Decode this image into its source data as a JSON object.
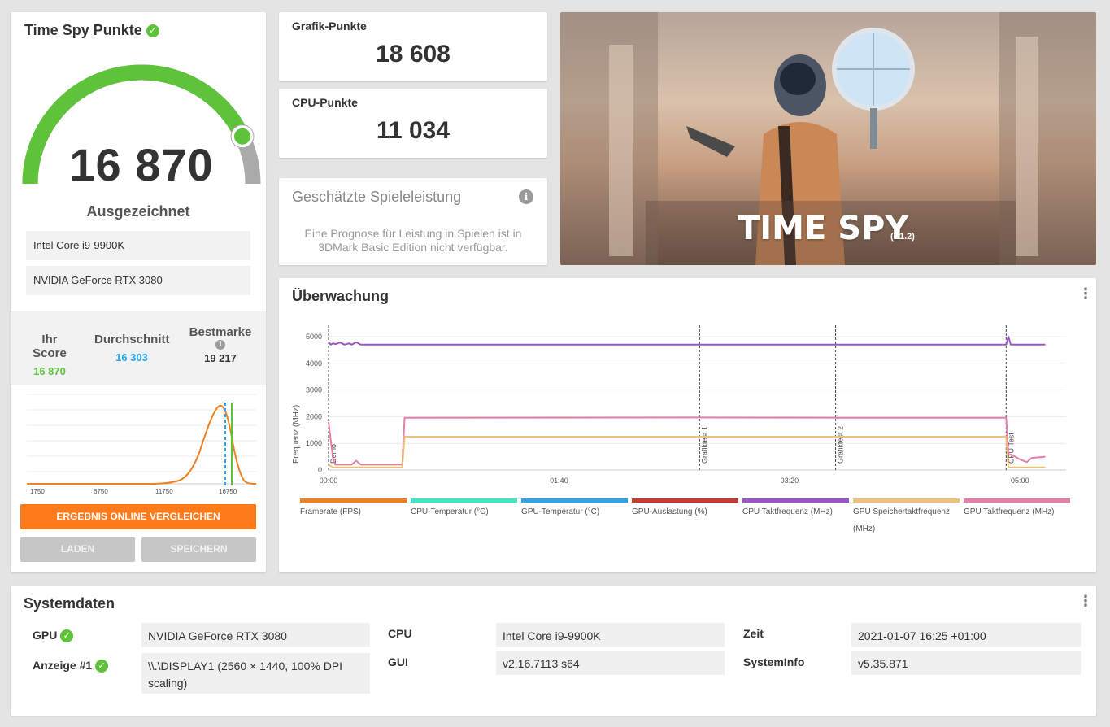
{
  "score_panel": {
    "title": "Time Spy Punkte",
    "score": "16 870",
    "score_fraction": 0.86,
    "rating": "Ausgezeichnet",
    "cpu": "Intel Core i9-9900K",
    "gpu": "NVIDIA GeForce RTX 3080",
    "stats": {
      "your_score_label": "Ihr Score",
      "your_score": "16 870",
      "average_label": "Durchschnitt",
      "average": "16 303",
      "best_label": "Bestmarke",
      "best": "19 217"
    },
    "distribution_chart": {
      "x_ticks": [
        "1750",
        "6750",
        "11750",
        "16750"
      ],
      "your_score_value": 16870,
      "average_value": 16303
    },
    "buttons": {
      "compare": "ERGEBNIS ONLINE VERGLEICHEN",
      "load": "LADEN",
      "save": "SPEICHERN"
    }
  },
  "graphics_score": {
    "label": "Grafik-Punkte",
    "value": "18 608"
  },
  "cpu_score": {
    "label": "CPU-Punkte",
    "value": "11 034"
  },
  "game_estimate": {
    "title": "Geschätzte Spieleleistung",
    "text": "Eine Prognose für Leistung in Spielen ist in 3DMark Basic Edition nicht verfügbar."
  },
  "banner": {
    "title": "TIME SPY",
    "version": "(V1.2)"
  },
  "monitoring": {
    "title": "Überwachung",
    "chart_data": {
      "type": "line",
      "ylabel": "Frequenz (MHz)",
      "y_ticks": [
        "5000",
        "4000",
        "3000",
        "2000",
        "1000",
        "0"
      ],
      "ylim": [
        0,
        5000
      ],
      "x_ticks": [
        "00:00",
        "01:40",
        "03:20",
        "05:00"
      ],
      "xlim_seconds": [
        0,
        320
      ],
      "markers": [
        {
          "t": 0,
          "label": "Demo"
        },
        {
          "t": 161,
          "label": "Grafiktest 1"
        },
        {
          "t": 220,
          "label": "Grafiktest 2"
        },
        {
          "t": 294,
          "label": "CPU Test"
        }
      ],
      "series": [
        {
          "name": "CPU Taktfrequenz (MHz)",
          "color": "#9b55c9",
          "points": [
            [
              0,
              4800
            ],
            [
              1,
              4700
            ],
            [
              2,
              4750
            ],
            [
              3,
              4720
            ],
            [
              5,
              4780
            ],
            [
              7,
              4700
            ],
            [
              9,
              4750
            ],
            [
              10,
              4700
            ],
            [
              12,
              4790
            ],
            [
              14,
              4700
            ],
            [
              294,
              4700
            ],
            [
              295,
              5000
            ],
            [
              296,
              4700
            ],
            [
              311,
              4700
            ]
          ]
        },
        {
          "name": "GPU Taktfrequenz (MHz)",
          "color": "#e67fa8",
          "points": [
            [
              0,
              1800
            ],
            [
              2,
              400
            ],
            [
              3,
              200
            ],
            [
              10,
              200
            ],
            [
              12,
              350
            ],
            [
              14,
              200
            ],
            [
              32,
              200
            ],
            [
              33,
              1960
            ],
            [
              161,
              1970
            ],
            [
              220,
              1960
            ],
            [
              294,
              1960
            ],
            [
              295,
              600
            ],
            [
              297,
              550
            ],
            [
              300,
              400
            ],
            [
              303,
              300
            ],
            [
              305,
              450
            ],
            [
              311,
              500
            ]
          ]
        },
        {
          "name": "GPU Speichertaktfrequenz (MHz)",
          "color": "#ecc27a",
          "points": [
            [
              0,
              200
            ],
            [
              2,
              100
            ],
            [
              32,
              100
            ],
            [
              33,
              1250
            ],
            [
              294,
              1250
            ],
            [
              295,
              100
            ],
            [
              311,
              100
            ]
          ]
        }
      ],
      "legend": [
        {
          "name": "Framerate (FPS)",
          "color": "#f07f1e"
        },
        {
          "name": "CPU-Temperatur (°C)",
          "color": "#3ee8c0"
        },
        {
          "name": "GPU-Temperatur (°C)",
          "color": "#2ca5ea"
        },
        {
          "name": "GPU-Auslastung (%)",
          "color": "#c63a36"
        },
        {
          "name": "CPU Taktfrequenz (MHz)",
          "color": "#9b55c9"
        },
        {
          "name": "GPU Speichertaktfrequenz (MHz)",
          "color": "#ecc27a"
        },
        {
          "name": "GPU Taktfrequenz (MHz)",
          "color": "#e67fa8"
        }
      ]
    }
  },
  "system": {
    "title": "Systemdaten",
    "gpu_label": "GPU",
    "gpu": "NVIDIA GeForce RTX 3080",
    "display_label": "Anzeige #1",
    "display": "\\\\.\\DISPLAY1 (2560 × 1440, 100% DPI scaling)",
    "cpu_label": "CPU",
    "cpu": "Intel Core i9-9900K",
    "gui_label": "GUI",
    "gui": "v2.16.7113 s64",
    "time_label": "Zeit",
    "time": "2021-01-07 16:25 +01:00",
    "sysinfo_label": "SystemInfo",
    "sysinfo": "v5.35.871"
  },
  "colors": {
    "green": "#5ec33b",
    "blue": "#2ca5ea",
    "orange": "#ff7a1a",
    "gauge_grey": "#aaaaaa"
  }
}
